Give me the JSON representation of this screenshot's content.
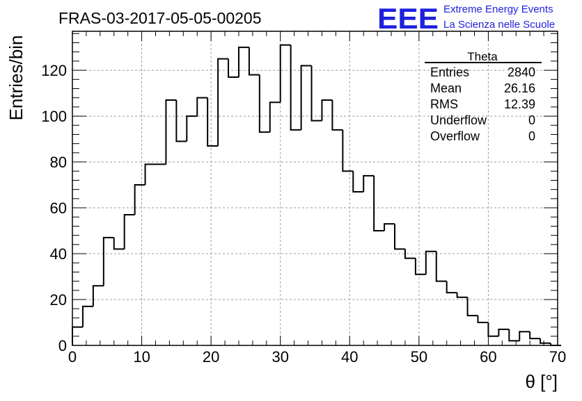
{
  "header": {
    "run_title": "FRAS-03-2017-05-05-00205",
    "logo_text": "EEE",
    "project_line1": "Extreme Energy Events",
    "project_line2": "La Scienza nelle Scuole",
    "logo_color": "#1f1fe0"
  },
  "stats_box": {
    "title": "Theta",
    "rows": [
      {
        "label": "Entries",
        "value": "2840"
      },
      {
        "label": "Mean",
        "value": "26.16"
      },
      {
        "label": "RMS",
        "value": "12.39"
      },
      {
        "label": "Underflow",
        "value": "0"
      },
      {
        "label": "Overflow",
        "value": "0"
      }
    ]
  },
  "chart_data": {
    "type": "histogram",
    "title": "FRAS-03-2017-05-05-00205",
    "xlabel": "θ [°]",
    "ylabel": "Entries/bin",
    "xlim": [
      0,
      70
    ],
    "ylim": [
      0,
      137
    ],
    "bin_width": 1.5,
    "bin_start": 0,
    "x_ticks": [
      0,
      10,
      20,
      30,
      40,
      50,
      60,
      70
    ],
    "y_ticks": [
      0,
      20,
      40,
      60,
      80,
      100,
      120
    ],
    "grid": true,
    "line_color": "#000000",
    "values": [
      8,
      17,
      26,
      47,
      42,
      57,
      70,
      79,
      79,
      107,
      89,
      100,
      108,
      87,
      125,
      117,
      130,
      118,
      93,
      106,
      131,
      94,
      122,
      98,
      107,
      94,
      76,
      67,
      74,
      50,
      53,
      42,
      38,
      31,
      41,
      28,
      23,
      21,
      13,
      10,
      4,
      7,
      2,
      6,
      3,
      1,
      0
    ]
  }
}
